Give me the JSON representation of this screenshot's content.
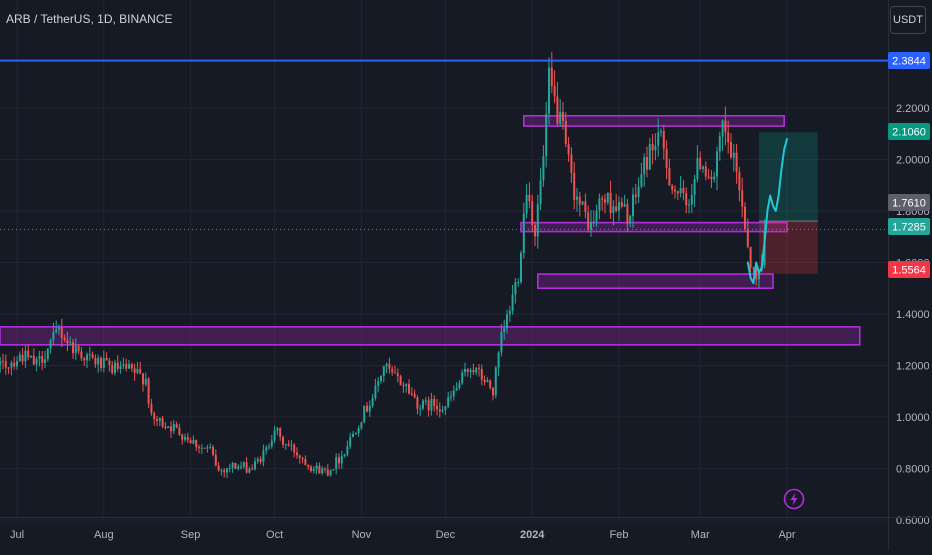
{
  "header": {
    "title": "ARB / TetherUS, 1D, BINANCE"
  },
  "currency_button": "USDT",
  "price_tags": {
    "blue_line": "2.3844",
    "target": "2.1060",
    "entry_gray": "1.7610",
    "last": "1.7285",
    "stop": "1.5564"
  },
  "colors": {
    "background": "#161a25",
    "bull": "#26a69a",
    "bear": "#ef5350",
    "zone": "#b02fd8",
    "blue_line": "#2962ff",
    "grid": "#232632",
    "axis_text": "#b2b5be"
  },
  "chart_data": {
    "type": "candlestick",
    "symbol": "ARB / TetherUS",
    "interval": "1D",
    "exchange": "BINANCE",
    "x_ticks": [
      "Jul",
      "Aug",
      "Sep",
      "Oct",
      "Nov",
      "Dec",
      "2024",
      "Feb",
      "Mar",
      "Apr"
    ],
    "y_ticks": [
      "2.2000",
      "2.0000",
      "1.8000",
      "1.6000",
      "1.4000",
      "1.2000",
      "1.0000",
      "0.8000",
      "0.6000"
    ],
    "ylim": [
      0.58,
      2.62
    ],
    "horizontal_line": 2.3844,
    "last_price": 1.7285,
    "zones": [
      {
        "from": 1.28,
        "to": 1.35,
        "start": "2023-06-17",
        "end": "2024-04-27"
      },
      {
        "from": 2.13,
        "to": 2.17,
        "start": "2023-12-29",
        "end": "2024-03-31"
      },
      {
        "from": 1.72,
        "to": 1.755,
        "start": "2023-12-28",
        "end": "2024-04-01"
      },
      {
        "from": 1.5,
        "to": 1.555,
        "start": "2024-01-03",
        "end": "2024-03-27"
      }
    ],
    "position": {
      "start": "2024-03-22",
      "end": "2024-04-12",
      "entry": 1.761,
      "target": 2.106,
      "stop": 1.5564
    },
    "projection": [
      [
        "2024-03-18",
        1.6
      ],
      [
        "2024-03-19",
        1.54
      ],
      [
        "2024-03-20",
        1.52
      ],
      [
        "2024-03-21",
        1.6
      ],
      [
        "2024-03-22",
        1.56
      ],
      [
        "2024-03-23",
        1.58
      ],
      [
        "2024-03-24",
        1.68
      ],
      [
        "2024-03-25",
        1.8
      ],
      [
        "2024-03-26",
        1.86
      ],
      [
        "2024-03-27",
        1.82
      ],
      [
        "2024-03-28",
        1.8
      ],
      [
        "2024-03-29",
        1.86
      ],
      [
        "2024-03-30",
        1.96
      ],
      [
        "2024-03-31",
        2.04
      ],
      [
        "2024-04-01",
        2.08
      ]
    ],
    "close_path": [
      [
        "2023-06-17",
        1.22
      ],
      [
        "2023-06-25",
        1.19
      ],
      [
        "2023-07-03",
        1.24
      ],
      [
        "2023-07-08",
        1.2
      ],
      [
        "2023-07-14",
        1.3
      ],
      [
        "2023-07-16",
        1.34
      ],
      [
        "2023-07-20",
        1.28
      ],
      [
        "2023-07-26",
        1.23
      ],
      [
        "2023-08-03",
        1.19
      ],
      [
        "2023-08-10",
        1.18
      ],
      [
        "2023-08-16",
        1.15
      ],
      [
        "2023-08-18",
        0.99
      ],
      [
        "2023-08-24",
        0.97
      ],
      [
        "2023-08-31",
        0.92
      ],
      [
        "2023-09-05",
        0.88
      ],
      [
        "2023-09-08",
        0.87
      ],
      [
        "2023-09-11",
        0.79
      ],
      [
        "2023-09-16",
        0.81
      ],
      [
        "2023-09-23",
        0.8
      ],
      [
        "2023-09-28",
        0.87
      ],
      [
        "2023-10-01",
        0.96
      ],
      [
        "2023-10-03",
        0.91
      ],
      [
        "2023-10-08",
        0.87
      ],
      [
        "2023-10-15",
        0.8
      ],
      [
        "2023-10-20",
        0.79
      ],
      [
        "2023-10-25",
        0.85
      ],
      [
        "2023-10-31",
        0.98
      ],
      [
        "2023-11-06",
        1.1
      ],
      [
        "2023-11-09",
        1.2
      ],
      [
        "2023-11-12",
        1.16
      ],
      [
        "2023-11-17",
        1.12
      ],
      [
        "2023-11-22",
        1.04
      ],
      [
        "2023-11-27",
        1.05
      ],
      [
        "2023-12-01",
        1.04
      ],
      [
        "2023-12-06",
        1.13
      ],
      [
        "2023-12-10",
        1.2
      ],
      [
        "2023-12-15",
        1.14
      ],
      [
        "2023-12-18",
        1.1
      ],
      [
        "2023-12-21",
        1.3
      ],
      [
        "2023-12-24",
        1.42
      ],
      [
        "2023-12-27",
        1.56
      ],
      [
        "2023-12-30",
        1.9
      ],
      [
        "2024-01-02",
        1.72
      ],
      [
        "2024-01-05",
        2.0
      ],
      [
        "2024-01-07",
        2.3
      ],
      [
        "2024-01-09",
        2.22
      ],
      [
        "2024-01-12",
        2.1
      ],
      [
        "2024-01-15",
        1.92
      ],
      [
        "2024-01-18",
        1.82
      ],
      [
        "2024-01-22",
        1.74
      ],
      [
        "2024-01-26",
        1.85
      ],
      [
        "2024-01-31",
        1.82
      ],
      [
        "2024-02-05",
        1.78
      ],
      [
        "2024-02-10",
        1.98
      ],
      [
        "2024-02-15",
        2.1
      ],
      [
        "2024-02-20",
        1.9
      ],
      [
        "2024-02-25",
        1.82
      ],
      [
        "2024-03-01",
        2.0
      ],
      [
        "2024-03-06",
        1.92
      ],
      [
        "2024-03-09",
        2.12
      ],
      [
        "2024-03-12",
        2.02
      ],
      [
        "2024-03-15",
        1.9
      ],
      [
        "2024-03-17",
        1.75
      ],
      [
        "2024-03-19",
        1.6
      ],
      [
        "2024-03-21",
        1.52
      ],
      [
        "2024-03-23",
        1.62
      ],
      [
        "2024-03-24",
        1.7285
      ]
    ]
  }
}
